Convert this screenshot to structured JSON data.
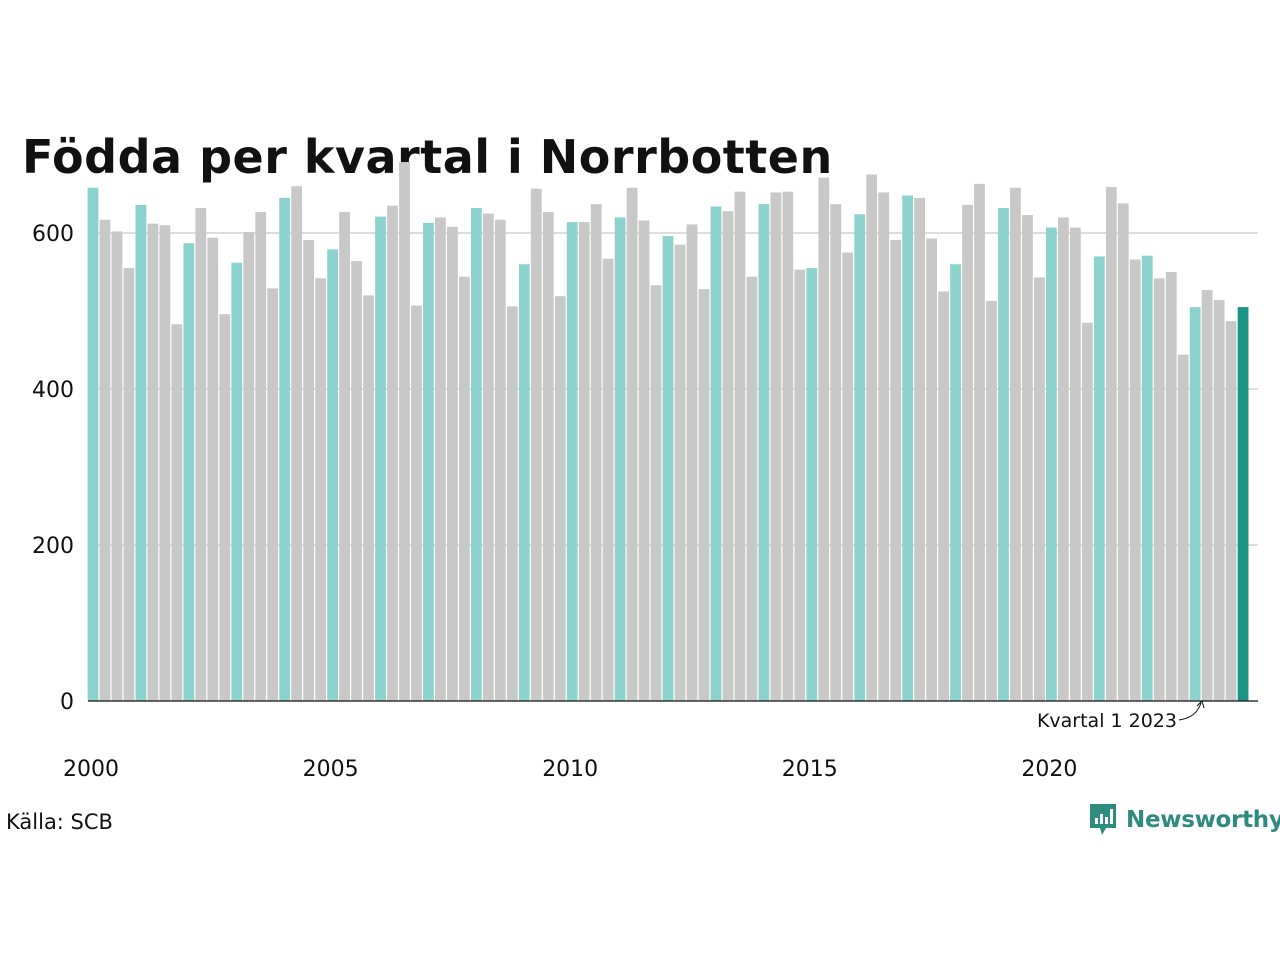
{
  "title": "Födda per kvartal i Norrbotten",
  "source": "Källa: SCB",
  "brand": "Newsworthy",
  "colors": {
    "q1": "#8dd3cd",
    "other": "#c8c8c8",
    "highlight": "#1a9484",
    "grid": "#dddddd",
    "axis": "#111111",
    "brand": "#2e8b7d"
  },
  "chart_data": {
    "type": "bar",
    "start_year": 2000,
    "ylim": [
      0,
      700
    ],
    "yticks": [
      0,
      200,
      400,
      600
    ],
    "xticks": [
      "2000",
      "2005",
      "2010",
      "2015",
      "2020"
    ],
    "annotation": "Kvartal 1 2023",
    "highlight_index": 96,
    "values": [
      658,
      617,
      602,
      555,
      636,
      612,
      610,
      483,
      587,
      632,
      594,
      496,
      562,
      601,
      627,
      529,
      645,
      660,
      591,
      542,
      579,
      627,
      564,
      520,
      621,
      635,
      691,
      507,
      613,
      620,
      608,
      544,
      632,
      625,
      617,
      506,
      560,
      657,
      627,
      519,
      614,
      614,
      637,
      567,
      620,
      658,
      616,
      533,
      596,
      585,
      611,
      528,
      634,
      628,
      653,
      544,
      637,
      652,
      653,
      553,
      555,
      671,
      637,
      575,
      624,
      675,
      652,
      591,
      648,
      645,
      593,
      525,
      560,
      636,
      663,
      513,
      632,
      658,
      623,
      543,
      607,
      620,
      607,
      485,
      570,
      659,
      638,
      566,
      571,
      542,
      550,
      444,
      505,
      527,
      514,
      487,
      505
    ]
  }
}
